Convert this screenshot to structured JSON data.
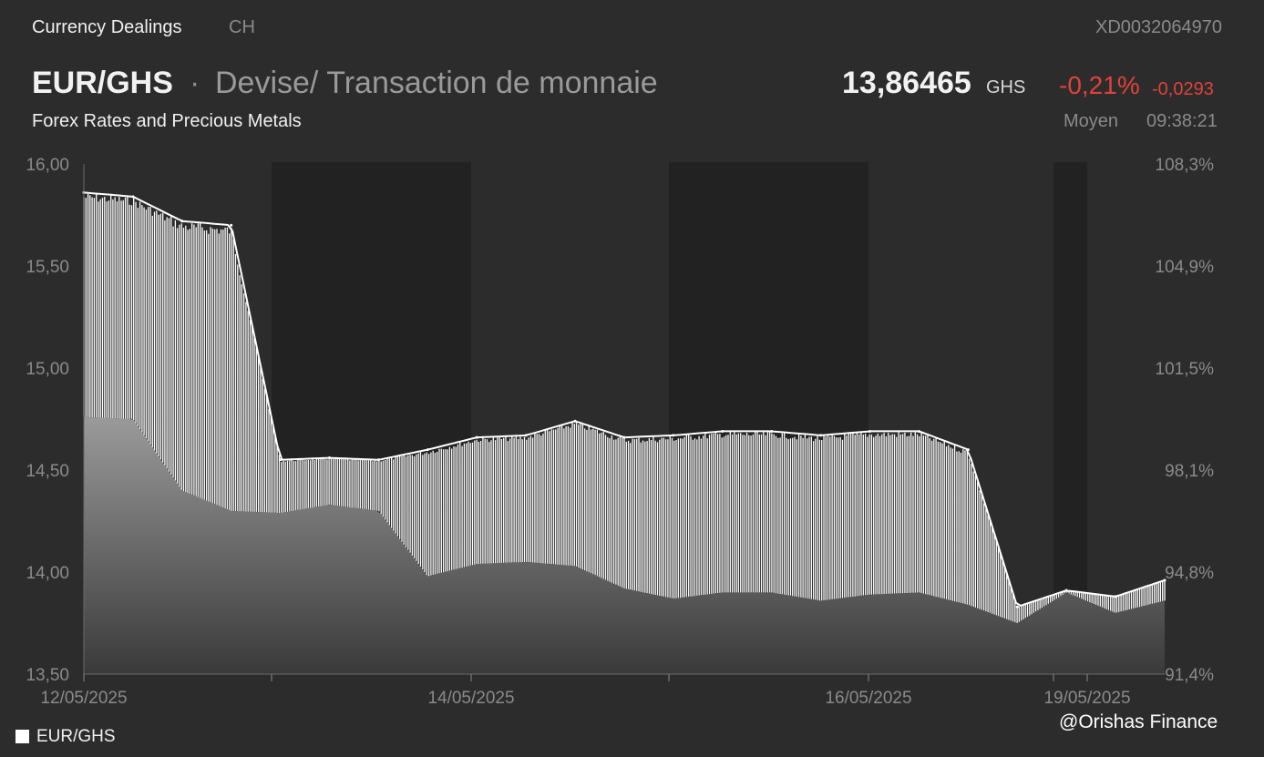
{
  "header": {
    "brand": "Currency Dealings",
    "exchange": "CH",
    "isin": "XD0032064970",
    "pair": "EUR/GHS",
    "separator": "·",
    "description": "Devise/ Transaction de monnaie",
    "subtitle": "Forex Rates and Precious Metals",
    "price": "13,86465",
    "currency": "GHS",
    "change_pct": "-0,21%",
    "change_abs": "-0,0293",
    "market_type": "Moyen",
    "time": "09:38:21"
  },
  "colors": {
    "background": "#2c2c2c",
    "weekend_band": "#222222",
    "line": "#ffffff",
    "negative": "#e0423a",
    "axis_text": "#8a8a8a"
  },
  "legend": {
    "label": "EUR/GHS"
  },
  "credit": "@Orishas Finance",
  "chart_data": {
    "type": "area",
    "series": [
      {
        "name": "EUR/GHS",
        "x": [
          "12/05/2025 00:00",
          "12/05/2025 06:00",
          "12/05/2025 12:00",
          "12/05/2025 18:00",
          "13/05/2025 00:00",
          "13/05/2025 06:00",
          "13/05/2025 12:00",
          "13/05/2025 18:00",
          "14/05/2025 00:00",
          "14/05/2025 06:00",
          "14/05/2025 12:00",
          "14/05/2025 18:00",
          "15/05/2025 00:00",
          "15/05/2025 06:00",
          "15/05/2025 12:00",
          "15/05/2025 18:00",
          "16/05/2025 00:00",
          "16/05/2025 06:00",
          "16/05/2025 12:00",
          "16/05/2025 18:00",
          "19/05/2025 00:00",
          "19/05/2025 06:00",
          "19/05/2025 12:00"
        ],
        "high": [
          15.86,
          15.84,
          15.72,
          15.7,
          14.55,
          14.56,
          14.55,
          14.6,
          14.66,
          14.67,
          14.74,
          14.66,
          14.67,
          14.69,
          14.69,
          14.67,
          14.69,
          14.69,
          14.6,
          13.83,
          13.91,
          13.88,
          13.96
        ],
        "low": [
          14.76,
          14.75,
          14.4,
          14.3,
          14.29,
          14.33,
          14.3,
          13.98,
          14.04,
          14.05,
          14.03,
          13.92,
          13.87,
          13.9,
          13.9,
          13.86,
          13.89,
          13.9,
          13.84,
          13.75,
          13.9,
          13.8,
          13.86
        ]
      }
    ],
    "xticks": [
      "12/05/2025",
      "14/05/2025",
      "16/05/2025",
      "19/05/2025"
    ],
    "ylim": [
      13.5,
      16.0
    ],
    "yticks": [
      "13,50",
      "14,00",
      "14,50",
      "15,00",
      "15,50",
      "16,00"
    ],
    "y2ticks": [
      "91,4%",
      "94,8%",
      "98,1%",
      "101,5%",
      "104,9%",
      "108,3%"
    ],
    "grid": false,
    "legend": "bottom-left"
  }
}
